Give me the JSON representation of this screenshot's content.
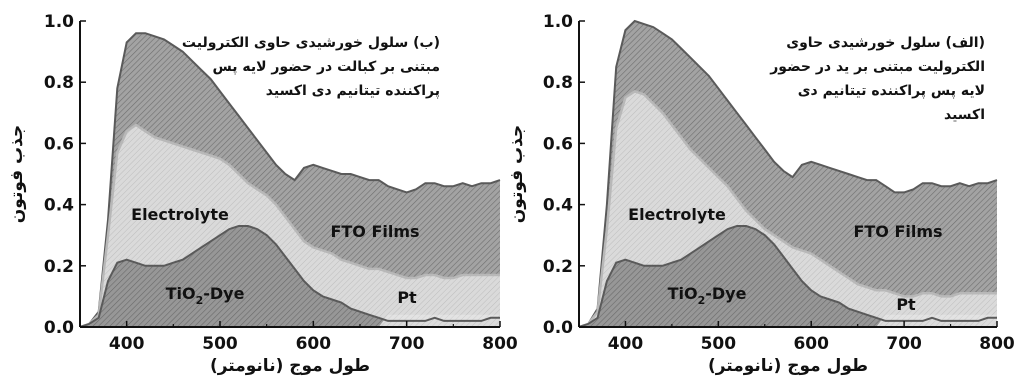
{
  "chart_data": [
    {
      "type": "area",
      "panel": "left",
      "caption": [
        "(ب) سلول خورشیدی حاوی الکترولیت",
        "مبتنی بر کبالت در حضور لایه پس",
        "پراکننده تیتانیم دی اکسید"
      ],
      "xlabel": "طول موج (نانومتر)",
      "ylabel": "جذب فوتون",
      "xlim": [
        350,
        800
      ],
      "ylim": [
        0,
        1.0
      ],
      "xticks": [
        "400",
        "500",
        "600",
        "700",
        "800"
      ],
      "yticks": [
        "0.0",
        "0.2",
        "0.4",
        "0.6",
        "0.8",
        "1.0"
      ],
      "region_labels": [
        {
          "key": "electrolyte",
          "text": "Electrolyte"
        },
        {
          "key": "fto",
          "text": "FTO Films"
        },
        {
          "key": "tio2",
          "text": "TiO",
          "sub": "2",
          "tail": "-Dye"
        },
        {
          "key": "pt",
          "text": "Pt"
        }
      ],
      "series": [
        {
          "key": "total",
          "x": [
            350,
            360,
            370,
            380,
            390,
            400,
            410,
            420,
            430,
            440,
            450,
            460,
            470,
            480,
            490,
            500,
            510,
            520,
            530,
            540,
            550,
            560,
            570,
            580,
            590,
            600,
            610,
            620,
            630,
            640,
            650,
            660,
            670,
            680,
            690,
            700,
            710,
            720,
            730,
            740,
            750,
            760,
            770,
            780,
            790,
            800
          ],
          "values": [
            0.0,
            0.01,
            0.05,
            0.35,
            0.78,
            0.93,
            0.96,
            0.96,
            0.95,
            0.94,
            0.92,
            0.9,
            0.87,
            0.84,
            0.81,
            0.77,
            0.73,
            0.69,
            0.65,
            0.61,
            0.57,
            0.53,
            0.5,
            0.48,
            0.52,
            0.53,
            0.52,
            0.51,
            0.5,
            0.5,
            0.49,
            0.48,
            0.48,
            0.46,
            0.45,
            0.44,
            0.45,
            0.47,
            0.47,
            0.46,
            0.46,
            0.47,
            0.46,
            0.47,
            0.47,
            0.48
          ]
        },
        {
          "key": "electrolyte_top",
          "x": [
            350,
            360,
            370,
            380,
            390,
            400,
            410,
            420,
            430,
            440,
            450,
            460,
            470,
            480,
            490,
            500,
            510,
            520,
            530,
            540,
            550,
            560,
            570,
            580,
            590,
            600,
            610,
            620,
            630,
            640,
            650,
            660,
            670,
            680,
            690,
            700,
            710,
            720,
            730,
            740,
            750,
            760,
            770,
            780,
            790,
            800
          ],
          "values": [
            0.0,
            0.01,
            0.04,
            0.3,
            0.57,
            0.64,
            0.66,
            0.64,
            0.62,
            0.61,
            0.6,
            0.59,
            0.58,
            0.57,
            0.56,
            0.55,
            0.53,
            0.5,
            0.47,
            0.45,
            0.43,
            0.4,
            0.36,
            0.32,
            0.28,
            0.26,
            0.25,
            0.24,
            0.22,
            0.21,
            0.2,
            0.19,
            0.19,
            0.18,
            0.17,
            0.16,
            0.16,
            0.17,
            0.17,
            0.16,
            0.16,
            0.17,
            0.17,
            0.17,
            0.17,
            0.17
          ]
        },
        {
          "key": "dye_top",
          "x": [
            350,
            360,
            370,
            380,
            390,
            400,
            410,
            420,
            430,
            440,
            450,
            460,
            470,
            480,
            490,
            500,
            510,
            520,
            530,
            540,
            550,
            560,
            570,
            580,
            590,
            600,
            610,
            620,
            630,
            640,
            650,
            660,
            670,
            680,
            690,
            700,
            710,
            720,
            730,
            740,
            750,
            760,
            770,
            780,
            790,
            800
          ],
          "values": [
            0.0,
            0.01,
            0.03,
            0.15,
            0.21,
            0.22,
            0.21,
            0.2,
            0.2,
            0.2,
            0.21,
            0.22,
            0.24,
            0.26,
            0.28,
            0.3,
            0.32,
            0.33,
            0.33,
            0.32,
            0.3,
            0.27,
            0.23,
            0.19,
            0.15,
            0.12,
            0.1,
            0.09,
            0.08,
            0.06,
            0.05,
            0.04,
            0.03,
            0.02,
            0.02,
            0.02,
            0.02,
            0.02,
            0.03,
            0.02,
            0.02,
            0.02,
            0.02,
            0.02,
            0.03,
            0.03
          ]
        }
      ]
    },
    {
      "type": "area",
      "panel": "right",
      "caption": [
        "(الف) سلول خورشیدی حاوی",
        "الکترولیت مبتنی بر ید در حضور",
        "لایه پس پراکننده تیتانیم دی",
        "اکسید"
      ],
      "xlabel": "طول موج (نانومتر)",
      "ylabel": "جذب فوتون",
      "xlim": [
        350,
        800
      ],
      "ylim": [
        0,
        1.0
      ],
      "xticks": [
        "400",
        "500",
        "600",
        "700",
        "800"
      ],
      "yticks": [
        "0.0",
        "0.2",
        "0.4",
        "0.6",
        "0.8",
        "1.0"
      ],
      "region_labels": [
        {
          "key": "electrolyte",
          "text": "Electrolyte"
        },
        {
          "key": "fto",
          "text": "FTO Films"
        },
        {
          "key": "tio2",
          "text": "TiO",
          "sub": "2",
          "tail": "-Dye"
        },
        {
          "key": "pt",
          "text": "Pt"
        }
      ],
      "series": [
        {
          "key": "total",
          "x": [
            350,
            360,
            370,
            380,
            390,
            400,
            410,
            420,
            430,
            440,
            450,
            460,
            470,
            480,
            490,
            500,
            510,
            520,
            530,
            540,
            550,
            560,
            570,
            580,
            590,
            600,
            610,
            620,
            630,
            640,
            650,
            660,
            670,
            680,
            690,
            700,
            710,
            720,
            730,
            740,
            750,
            760,
            770,
            780,
            790,
            800
          ],
          "values": [
            0.0,
            0.01,
            0.06,
            0.4,
            0.85,
            0.97,
            1.0,
            0.99,
            0.98,
            0.96,
            0.94,
            0.91,
            0.88,
            0.85,
            0.82,
            0.78,
            0.74,
            0.7,
            0.66,
            0.62,
            0.58,
            0.54,
            0.51,
            0.49,
            0.53,
            0.54,
            0.53,
            0.52,
            0.51,
            0.5,
            0.49,
            0.48,
            0.48,
            0.46,
            0.44,
            0.44,
            0.45,
            0.47,
            0.47,
            0.46,
            0.46,
            0.47,
            0.46,
            0.47,
            0.47,
            0.48
          ]
        },
        {
          "key": "electrolyte_top",
          "x": [
            350,
            360,
            370,
            380,
            390,
            400,
            410,
            420,
            430,
            440,
            450,
            460,
            470,
            480,
            490,
            500,
            510,
            520,
            530,
            540,
            550,
            560,
            570,
            580,
            590,
            600,
            610,
            620,
            630,
            640,
            650,
            660,
            670,
            680,
            690,
            700,
            710,
            720,
            730,
            740,
            750,
            760,
            770,
            780,
            790,
            800
          ],
          "values": [
            0.0,
            0.01,
            0.05,
            0.32,
            0.65,
            0.75,
            0.77,
            0.76,
            0.73,
            0.7,
            0.66,
            0.62,
            0.58,
            0.55,
            0.52,
            0.49,
            0.46,
            0.42,
            0.38,
            0.35,
            0.32,
            0.3,
            0.28,
            0.26,
            0.25,
            0.24,
            0.22,
            0.2,
            0.18,
            0.16,
            0.14,
            0.13,
            0.12,
            0.12,
            0.11,
            0.1,
            0.1,
            0.11,
            0.11,
            0.1,
            0.1,
            0.11,
            0.11,
            0.11,
            0.11,
            0.11
          ]
        },
        {
          "key": "dye_top",
          "x": [
            350,
            360,
            370,
            380,
            390,
            400,
            410,
            420,
            430,
            440,
            450,
            460,
            470,
            480,
            490,
            500,
            510,
            520,
            530,
            540,
            550,
            560,
            570,
            580,
            590,
            600,
            610,
            620,
            630,
            640,
            650,
            660,
            670,
            680,
            690,
            700,
            710,
            720,
            730,
            740,
            750,
            760,
            770,
            780,
            790,
            800
          ],
          "values": [
            0.0,
            0.01,
            0.03,
            0.15,
            0.21,
            0.22,
            0.21,
            0.2,
            0.2,
            0.2,
            0.21,
            0.22,
            0.24,
            0.26,
            0.28,
            0.3,
            0.32,
            0.33,
            0.33,
            0.32,
            0.3,
            0.27,
            0.23,
            0.19,
            0.15,
            0.12,
            0.1,
            0.09,
            0.08,
            0.06,
            0.05,
            0.04,
            0.03,
            0.02,
            0.02,
            0.02,
            0.02,
            0.02,
            0.03,
            0.02,
            0.02,
            0.02,
            0.02,
            0.02,
            0.03,
            0.03
          ]
        }
      ]
    }
  ],
  "colors": {
    "fto": "#9a9a9a",
    "electrolyte": "#d4d4d4",
    "dye": "#8c8c8c",
    "pt": "#e2e2e2",
    "outline": "#5a5a5a",
    "electrolyte_edge": "#b8b8b8"
  }
}
